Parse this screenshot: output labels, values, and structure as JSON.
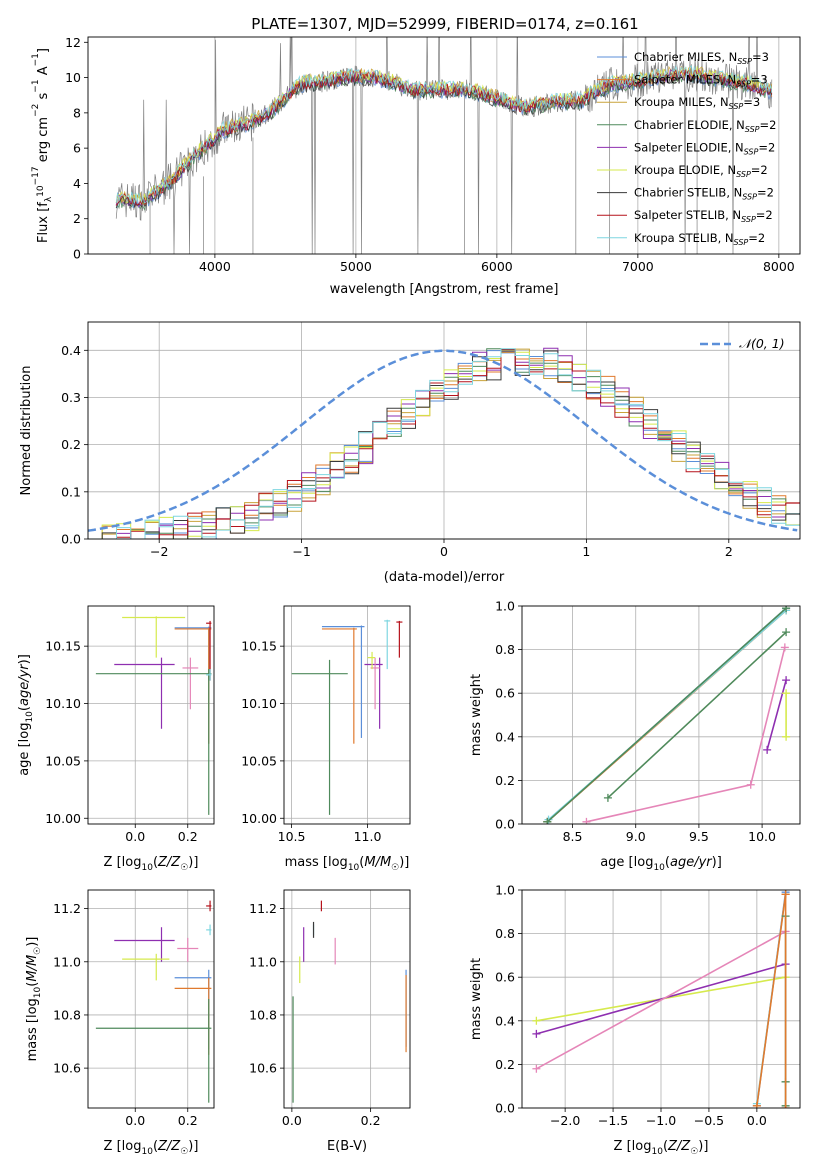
{
  "figure": {
    "title": "PLATE=1307, MJD=52999, FIBERID=0174, z=0.161"
  },
  "colors": {
    "Chabrier MILES": "#5b8fd9",
    "Salpeter MILES": "#e07a2e",
    "Kroupa MILES": "#c9a33a",
    "Chabrier ELODIE": "#4f8a5b",
    "Salpeter ELODIE": "#8e2fb0",
    "Kroupa ELODIE": "#d6ea4d",
    "Chabrier STELIB": "#3a3a3a",
    "Salpeter STELIB": "#b5121b",
    "Kroupa STELIB": "#7fd6e0",
    "data": "#808080",
    "normal": "#5b8fd9",
    "pink": "#e586b8"
  },
  "chart_data": [
    {
      "type": "line",
      "title": "PLATE=1307, MJD=52999, FIBERID=0174, z=0.161",
      "xlabel": "wavelength [Angstrom, rest frame]",
      "ylabel": "Flux [f_λ 10^-17 erg cm^-2 s^-1 A^-1]",
      "xlim": [
        3100,
        8150
      ],
      "ylim": [
        0,
        12.3
      ],
      "xticks": [
        4000,
        5000,
        6000,
        7000,
        8000
      ],
      "yticks": [
        0,
        2,
        4,
        6,
        8,
        10,
        12
      ],
      "legend_position": "top-right",
      "legend": [
        {
          "name": "Chabrier MILES",
          "nssp": "3"
        },
        {
          "name": "Salpeter MILES",
          "nssp": "3"
        },
        {
          "name": "Kroupa MILES",
          "nssp": "3"
        },
        {
          "name": "Chabrier ELODIE",
          "nssp": "2"
        },
        {
          "name": "Salpeter ELODIE",
          "nssp": "2"
        },
        {
          "name": "Kroupa ELODIE",
          "nssp": "2"
        },
        {
          "name": "Chabrier STELIB",
          "nssp": "2"
        },
        {
          "name": "Salpeter STELIB",
          "nssp": "2"
        },
        {
          "name": "Kroupa STELIB",
          "nssp": "2"
        }
      ],
      "continuum": {
        "x": [
          3300,
          3500,
          3700,
          3850,
          3950,
          4050,
          4250,
          4400,
          4600,
          4800,
          5000,
          5200,
          5400,
          5600,
          5800,
          6000,
          6200,
          6400,
          6600,
          6800,
          7000,
          7200,
          7400,
          7600,
          7800,
          7950
        ],
        "y": [
          3.1,
          3.0,
          4.2,
          5.5,
          6.2,
          7.0,
          7.4,
          8.1,
          9.6,
          9.8,
          10.1,
          9.9,
          9.3,
          9.3,
          9.3,
          8.8,
          8.3,
          8.6,
          8.7,
          9.6,
          9.8,
          10.1,
          10.2,
          9.9,
          9.6,
          9.2
        ]
      }
    },
    {
      "type": "histogram",
      "xlabel": "(data-model)/error",
      "ylabel": "Normed distribution",
      "xlim": [
        -2.5,
        2.5
      ],
      "ylim": [
        0,
        0.46
      ],
      "xticks": [
        -2,
        -1,
        0,
        1,
        2
      ],
      "yticks": [
        0.0,
        0.1,
        0.2,
        0.3,
        0.4
      ],
      "normal_label": "𝒩(0, 1)",
      "bin_width": 0.1,
      "center_shift": 0.55,
      "sigma": 0.95,
      "peak": 0.38
    },
    {
      "type": "errorbar",
      "xlabel": "Z [log10(Z/Z☉)]",
      "ylabel": "age  [log10(age/yr)]",
      "xlim": [
        -0.18,
        0.3
      ],
      "ylim": [
        9.995,
        10.185
      ],
      "xticks": [
        0.0,
        0.2
      ],
      "xticklabels": [
        "0.0",
        "0.2"
      ],
      "yticks": [
        10.0,
        10.05,
        10.1,
        10.15
      ],
      "yticklabels": [
        "10.00",
        "10.05",
        "10.10",
        "10.15"
      ],
      "points": [
        {
          "model": "Kroupa ELODIE",
          "x": 0.08,
          "xlo": -0.05,
          "xhi": 0.19,
          "y": 10.175,
          "ylo": 10.14,
          "yhi": 10.176
        },
        {
          "model": "Chabrier MILES",
          "x": 0.28,
          "xlo": 0.15,
          "xhi": 0.29,
          "y": 10.166,
          "ylo": 10.065,
          "yhi": 10.167
        },
        {
          "model": "Salpeter MILES",
          "x": 0.28,
          "xlo": 0.15,
          "xhi": 0.29,
          "y": 10.165,
          "ylo": 10.065,
          "yhi": 10.166
        },
        {
          "model": "Salpeter STELIB",
          "x": 0.285,
          "xlo": 0.27,
          "xhi": 0.29,
          "y": 10.17,
          "ylo": 10.12,
          "yhi": 10.172
        },
        {
          "model": "Salpeter ELODIE",
          "x": 0.1,
          "xlo": -0.08,
          "xhi": 0.15,
          "y": 10.134,
          "ylo": 10.078,
          "yhi": 10.14
        },
        {
          "model": "pink",
          "x": 0.21,
          "xlo": 0.18,
          "xhi": 0.24,
          "y": 10.131,
          "ylo": 10.095,
          "yhi": 10.14
        },
        {
          "model": "Chabrier ELODIE",
          "x": 0.28,
          "xlo": -0.15,
          "xhi": 0.29,
          "y": 10.126,
          "ylo": 10.003,
          "yhi": 10.13
        },
        {
          "model": "Kroupa STELIB",
          "x": 0.285,
          "xlo": 0.27,
          "xhi": 0.29,
          "y": 10.125,
          "ylo": 10.12,
          "yhi": 10.13
        }
      ]
    },
    {
      "type": "errorbar",
      "xlabel": "mass [log10(M/M☉)]",
      "xlim": [
        10.45,
        11.28
      ],
      "ylim": [
        9.995,
        10.185
      ],
      "xticks": [
        10.5,
        11.0
      ],
      "xticklabels": [
        "10.5",
        "11.0"
      ],
      "yticks": [
        10.0,
        10.05,
        10.1,
        10.15
      ],
      "yticklabels": [
        "10.00",
        "10.05",
        "10.10",
        "10.15"
      ],
      "points": [
        {
          "model": "Chabrier MILES",
          "x": 10.96,
          "xlo": 10.7,
          "xhi": 10.98,
          "y": 10.167,
          "ylo": 10.07,
          "yhi": 10.168
        },
        {
          "model": "Salpeter MILES",
          "x": 10.91,
          "xlo": 10.7,
          "xhi": 10.93,
          "y": 10.165,
          "ylo": 10.065,
          "yhi": 10.166
        },
        {
          "model": "Kroupa STELIB",
          "x": 11.13,
          "xlo": 11.11,
          "xhi": 11.15,
          "y": 10.172,
          "ylo": 10.13,
          "yhi": 10.173
        },
        {
          "model": "Salpeter STELIB",
          "x": 11.21,
          "xlo": 11.19,
          "xhi": 11.23,
          "y": 10.171,
          "ylo": 10.14,
          "yhi": 10.172
        },
        {
          "model": "Salpeter ELODIE",
          "x": 11.08,
          "xlo": 10.98,
          "xhi": 11.1,
          "y": 10.134,
          "ylo": 10.078,
          "yhi": 10.14
        },
        {
          "model": "pink",
          "x": 11.05,
          "xlo": 11.02,
          "xhi": 11.08,
          "y": 10.131,
          "ylo": 10.095,
          "yhi": 10.14
        },
        {
          "model": "Kroupa ELODIE",
          "x": 11.03,
          "xlo": 11.0,
          "xhi": 11.05,
          "y": 10.14,
          "ylo": 10.13,
          "yhi": 10.145
        },
        {
          "model": "Chabrier ELODIE",
          "x": 10.75,
          "xlo": 10.5,
          "xhi": 10.87,
          "y": 10.126,
          "ylo": 10.003,
          "yhi": 10.138
        }
      ]
    },
    {
      "type": "line",
      "xlabel": "age  [log10(age/yr)]",
      "ylabel": "mass weight",
      "xlim": [
        8.1,
        10.3
      ],
      "ylim": [
        0,
        1.0
      ],
      "xticks": [
        8.5,
        9.0,
        9.5,
        10.0
      ],
      "xticklabels": [
        "8.5",
        "9.0",
        "9.5",
        "10.0"
      ],
      "yticks": [
        0.0,
        0.2,
        0.4,
        0.6,
        0.8,
        1.0
      ],
      "series": [
        {
          "model": "Chabrier MILES",
          "x": [
            8.3,
            10.19
          ],
          "y": [
            0.01,
            0.99
          ]
        },
        {
          "model": "Salpeter MILES",
          "x": [
            8.3,
            10.19
          ],
          "y": [
            0.01,
            0.98
          ]
        },
        {
          "model": "Kroupa STELIB",
          "x": [
            8.31,
            10.19
          ],
          "y": [
            0.02,
            0.98
          ]
        },
        {
          "model": "Chabrier ELODIE",
          "x": [
            8.3,
            10.19
          ],
          "y": [
            0.01,
            0.99
          ]
        },
        {
          "model": "Chabrier ELODIE",
          "x": [
            8.78,
            10.19
          ],
          "y": [
            0.12,
            0.88
          ]
        },
        {
          "model": "pink",
          "x": [
            8.61,
            9.91,
            10.18
          ],
          "y": [
            0.01,
            0.18,
            0.81
          ]
        },
        {
          "model": "Salpeter ELODIE",
          "x": [
            10.04,
            10.19
          ],
          "y": [
            0.34,
            0.66
          ]
        },
        {
          "model": "Kroupa ELODIE",
          "x": [
            10.19,
            10.19
          ],
          "y": [
            0.4,
            0.6
          ]
        }
      ]
    },
    {
      "type": "errorbar",
      "xlabel": "Z [log10(Z/Z☉)]",
      "ylabel": "mass [log10(M/M☉)]",
      "xlim": [
        -0.18,
        0.3
      ],
      "ylim": [
        10.45,
        11.27
      ],
      "xticks": [
        0.0,
        0.2
      ],
      "xticklabels": [
        "0.0",
        "0.2"
      ],
      "yticks": [
        10.6,
        10.8,
        11.0,
        11.2
      ],
      "yticklabels": [
        "10.6",
        "10.8",
        "11.0",
        "11.2"
      ],
      "points": [
        {
          "model": "Salpeter STELIB",
          "x": 0.285,
          "xlo": 0.27,
          "xhi": 0.29,
          "y": 11.21,
          "ylo": 11.19,
          "yhi": 11.23
        },
        {
          "model": "Kroupa STELIB",
          "x": 0.285,
          "xlo": 0.27,
          "xhi": 0.29,
          "y": 11.12,
          "ylo": 11.1,
          "yhi": 11.14
        },
        {
          "model": "Salpeter ELODIE",
          "x": 0.1,
          "xlo": -0.08,
          "xhi": 0.15,
          "y": 11.08,
          "ylo": 11.0,
          "yhi": 11.13
        },
        {
          "model": "pink",
          "x": 0.2,
          "xlo": 0.16,
          "xhi": 0.24,
          "y": 11.05,
          "ylo": 11.0,
          "yhi": 11.09
        },
        {
          "model": "Kroupa ELODIE",
          "x": 0.08,
          "xlo": -0.05,
          "xhi": 0.13,
          "y": 11.01,
          "ylo": 10.93,
          "yhi": 11.03
        },
        {
          "model": "Chabrier MILES",
          "x": 0.28,
          "xlo": 0.15,
          "xhi": 0.29,
          "y": 10.94,
          "ylo": 10.67,
          "yhi": 10.97
        },
        {
          "model": "Salpeter MILES",
          "x": 0.28,
          "xlo": 0.15,
          "xhi": 0.29,
          "y": 10.9,
          "ylo": 10.65,
          "yhi": 10.94
        },
        {
          "model": "Chabrier ELODIE",
          "x": 0.28,
          "xlo": -0.15,
          "xhi": 0.29,
          "y": 10.75,
          "ylo": 10.47,
          "yhi": 10.86
        }
      ]
    },
    {
      "type": "errorbar",
      "xlabel": "E(B-V)",
      "xlim": [
        -0.02,
        0.3
      ],
      "ylim": [
        10.45,
        11.27
      ],
      "xticks": [
        0.0,
        0.2
      ],
      "xticklabels": [
        "0.0",
        "0.2"
      ],
      "yticks": [
        10.6,
        10.8,
        11.0,
        11.2
      ],
      "yticklabels": [
        "10.6",
        "10.8",
        "11.0",
        "11.2"
      ],
      "points": [
        {
          "model": "Salpeter STELIB",
          "x": 0.075,
          "ylo": 11.19,
          "yhi": 11.23,
          "y": 11.21
        },
        {
          "model": "Kroupa STELIB",
          "x": 0.055,
          "ylo": 11.1,
          "yhi": 11.14,
          "y": 11.12
        },
        {
          "model": "Salpeter ELODIE",
          "x": 0.03,
          "ylo": 11.0,
          "yhi": 11.13,
          "y": 11.08
        },
        {
          "model": "Chabrier STELIB",
          "x": 0.055,
          "ylo": 11.09,
          "yhi": 11.15,
          "y": 11.12
        },
        {
          "model": "pink",
          "x": 0.11,
          "ylo": 10.99,
          "yhi": 11.09,
          "y": 11.04
        },
        {
          "model": "Kroupa ELODIE",
          "x": 0.02,
          "ylo": 10.92,
          "yhi": 11.02,
          "y": 10.97
        },
        {
          "model": "Chabrier MILES",
          "x": 0.29,
          "ylo": 10.68,
          "yhi": 10.97,
          "y": 10.9
        },
        {
          "model": "Salpeter MILES",
          "x": 0.29,
          "ylo": 10.66,
          "yhi": 10.95,
          "y": 10.85
        },
        {
          "model": "Chabrier ELODIE",
          "x": 0.003,
          "ylo": 10.47,
          "yhi": 10.87,
          "y": 10.75
        }
      ]
    },
    {
      "type": "line",
      "xlabel": "Z [log10(Z/Z☉)]",
      "ylabel": "mass weight",
      "xlim": [
        -2.45,
        0.45
      ],
      "ylim": [
        0,
        1.0
      ],
      "xticks": [
        -2.0,
        -1.5,
        -1.0,
        -0.5,
        0.0
      ],
      "xticklabels": [
        "−2.0",
        "−1.5",
        "−1.0",
        "−0.5",
        "0.0"
      ],
      "yticks": [
        0.0,
        0.2,
        0.4,
        0.6,
        0.8,
        1.0
      ],
      "series": [
        {
          "model": "Kroupa ELODIE",
          "x": [
            -2.3,
            0.3
          ],
          "y": [
            0.4,
            0.6
          ]
        },
        {
          "model": "Salpeter ELODIE",
          "x": [
            -2.3,
            0.3
          ],
          "y": [
            0.34,
            0.66
          ]
        },
        {
          "model": "pink",
          "x": [
            -2.3,
            0.3
          ],
          "y": [
            0.18,
            0.81
          ]
        },
        {
          "model": "Chabrier MILES",
          "x": [
            0.0,
            0.3
          ],
          "y": [
            0.01,
            0.99
          ]
        },
        {
          "model": "Kroupa STELIB",
          "x": [
            0.0,
            0.3
          ],
          "y": [
            0.02,
            0.98
          ]
        },
        {
          "model": "Salpeter MILES",
          "x": [
            0.0,
            0.3
          ],
          "y": [
            0.01,
            0.98
          ]
        },
        {
          "model": "Chabrier ELODIE",
          "x": [
            0.3,
            0.3
          ],
          "y": [
            0.01,
            0.12
          ]
        },
        {
          "model": "Chabrier ELODIE",
          "x": [
            0.3,
            0.3
          ],
          "y": [
            0.12,
            0.88
          ]
        },
        {
          "model": "Salpeter MILES",
          "x": [
            0.3,
            0.3
          ],
          "y": [
            0.0,
            0.98
          ]
        }
      ]
    }
  ]
}
